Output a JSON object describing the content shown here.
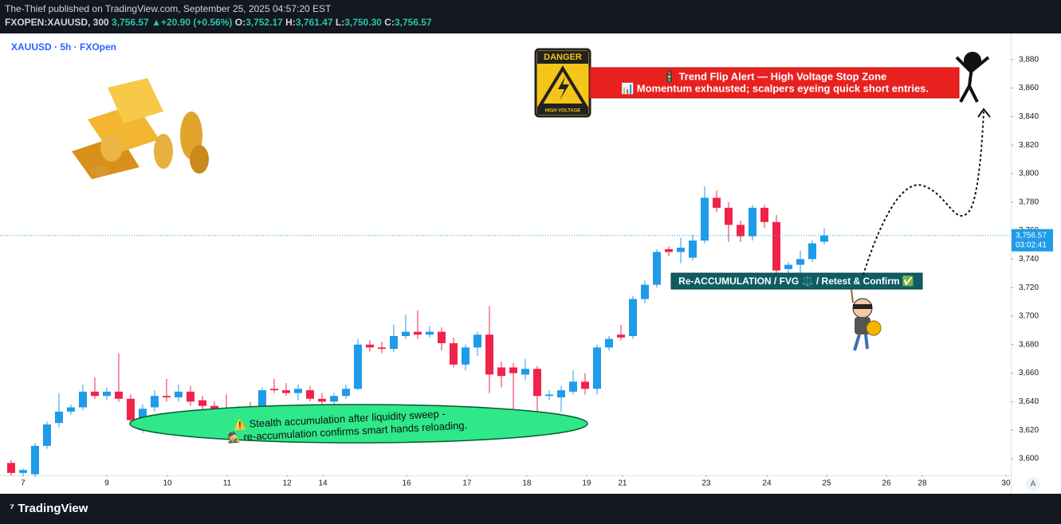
{
  "header": {
    "published": "The-Thief published on TradingView.com, September 25, 2025 04:57:20 EST",
    "symbol": "FXOPEN:XAUUSD, 300",
    "price": "3,756.57",
    "change": "▲+20.90 (+0.56%)",
    "o_label": "O:",
    "o": "3,752.17",
    "h_label": "H:",
    "h": "3,761.47",
    "l_label": "L:",
    "l": "3,750.30",
    "c_label": "C:",
    "c": "3,756.57"
  },
  "footer": {
    "brand": "TradingView",
    "button": "A"
  },
  "chart_data": {
    "type": "candlestick",
    "title": "XAUUSD · 5h · FXOpen",
    "up_color": "#1e9be9",
    "down_color": "#f0234b",
    "open": [
      3597,
      3590,
      3589,
      3609,
      3625,
      3633,
      3636,
      3647,
      3644,
      3647,
      3642,
      3620,
      3636,
      3644,
      3643,
      3647,
      3641,
      3637,
      3630,
      3629,
      3635,
      3633,
      3649,
      3648,
      3646,
      3648,
      3642,
      3640,
      3644,
      3649,
      3680,
      3678,
      3677,
      3686,
      3689,
      3687,
      3689,
      3681,
      3666,
      3678,
      3687,
      3664,
      3664,
      3659,
      3663,
      3644,
      3643,
      3647,
      3654,
      3649,
      3678,
      3687,
      3686,
      3712,
      3722,
      3747,
      3745,
      3741,
      3753,
      3783,
      3776,
      3764,
      3756,
      3776,
      3766,
      3733,
      3736,
      3740,
      3752.17
    ],
    "high": [
      3599,
      3593,
      3611,
      3626,
      3646,
      3638,
      3652,
      3657,
      3650,
      3674,
      3645,
      3638,
      3648,
      3656,
      3652,
      3651,
      3644,
      3640,
      3645,
      3637,
      3640,
      3650,
      3656,
      3653,
      3652,
      3651,
      3646,
      3646,
      3652,
      3684,
      3683,
      3682,
      3694,
      3701,
      3704,
      3693,
      3692,
      3685,
      3680,
      3689,
      3707,
      3668,
      3667,
      3670,
      3665,
      3648,
      3651,
      3662,
      3660,
      3680,
      3686,
      3694,
      3714,
      3725,
      3747,
      3749,
      3755,
      3757,
      3791,
      3788,
      3780,
      3767,
      3778,
      3778,
      3771,
      3738,
      3746,
      3753,
      3761.47
    ],
    "low": [
      3588,
      3588,
      3587,
      3607,
      3622,
      3631,
      3634,
      3642,
      3641,
      3640,
      3624,
      3618,
      3633,
      3640,
      3640,
      3637,
      3633,
      3627,
      3622,
      3624,
      3630,
      3631,
      3646,
      3644,
      3641,
      3640,
      3636,
      3635,
      3642,
      3648,
      3675,
      3674,
      3675,
      3684,
      3684,
      3685,
      3676,
      3664,
      3662,
      3672,
      3646,
      3650,
      3635,
      3655,
      3631,
      3641,
      3633,
      3645,
      3645,
      3645,
      3676,
      3683,
      3684,
      3709,
      3720,
      3742,
      3737,
      3739,
      3751,
      3773,
      3752,
      3752,
      3753,
      3762,
      3728,
      3727,
      3729,
      3738,
      3750.3
    ],
    "close": [
      3590,
      3592,
      3609,
      3624,
      3633,
      3636,
      3647,
      3644,
      3647,
      3642,
      3627,
      3635,
      3644,
      3643,
      3647,
      3640,
      3637,
      3630,
      3629,
      3635,
      3633,
      3648,
      3648,
      3646,
      3649,
      3642,
      3640,
      3644,
      3649,
      3680,
      3678,
      3677,
      3686,
      3689,
      3687,
      3689,
      3681,
      3666,
      3678,
      3687,
      3659,
      3658,
      3660,
      3663,
      3644,
      3645,
      3648,
      3654,
      3649,
      3678,
      3684,
      3685,
      3712,
      3722,
      3745,
      3745,
      3748,
      3753,
      3783,
      3776,
      3764,
      3756,
      3776,
      3766,
      3732,
      3736,
      3740,
      3751,
      3756.57
    ],
    "last_price_label": "3,756.57",
    "countdown": "03:02:41",
    "ylim": [
      3588.8,
      3898.3
    ],
    "yticks": [
      {
        "value": 3600,
        "label": "3,600"
      },
      {
        "value": 3620,
        "label": "3,620"
      },
      {
        "value": 3640,
        "label": "3,640"
      },
      {
        "value": 3660,
        "label": "3,660"
      },
      {
        "value": 3680,
        "label": "3,680"
      },
      {
        "value": 3700,
        "label": "3,700"
      },
      {
        "value": 3720,
        "label": "3,720"
      },
      {
        "value": 3740,
        "label": "3,740"
      },
      {
        "value": 3760,
        "label": "3,760"
      },
      {
        "value": 3780,
        "label": "3,780"
      },
      {
        "value": 3800,
        "label": "3,800"
      },
      {
        "value": 3820,
        "label": "3,820"
      },
      {
        "value": 3840,
        "label": "3,840"
      },
      {
        "value": 3860,
        "label": "3,860"
      },
      {
        "value": 3880,
        "label": "3,880"
      }
    ],
    "xlim": [
      -0.93,
      83.6
    ],
    "xticks": [
      {
        "value": 1,
        "label": "7"
      },
      {
        "value": 8,
        "label": "9"
      },
      {
        "value": 13.07,
        "label": "10"
      },
      {
        "value": 18.07,
        "label": "11"
      },
      {
        "value": 23.07,
        "label": "12"
      },
      {
        "value": 26.07,
        "label": "14"
      },
      {
        "value": 33.07,
        "label": "16"
      },
      {
        "value": 38.13,
        "label": "17"
      },
      {
        "value": 43.13,
        "label": "18"
      },
      {
        "value": 48.13,
        "label": "19"
      },
      {
        "value": 51.13,
        "label": "21"
      },
      {
        "value": 58.13,
        "label": "23"
      },
      {
        "value": 63.2,
        "label": "24"
      },
      {
        "value": 68.2,
        "label": "25"
      },
      {
        "value": 73.2,
        "label": "26"
      },
      {
        "value": 76.2,
        "label": "28"
      },
      {
        "value": 83.2,
        "label": "30"
      }
    ],
    "annotations": {
      "alert_line1": "🚦 Trend Flip Alert — High Voltage Stop Zone",
      "alert_line2": "📊 Momentum exhausted; scalpers eyeing quick short entries.",
      "reaccumulation": "Re-ACCUMULATION / FVG ⚖️ / Retest & Confirm ✅",
      "stealth_line1": "⚠️ Stealth accumulation after liquidity sweep -",
      "stealth_line2": "🕵️ re-accumulation confirms smart hands reloading.",
      "danger": "DANGER",
      "high_voltage": "HIGH VOLTAGE"
    }
  }
}
